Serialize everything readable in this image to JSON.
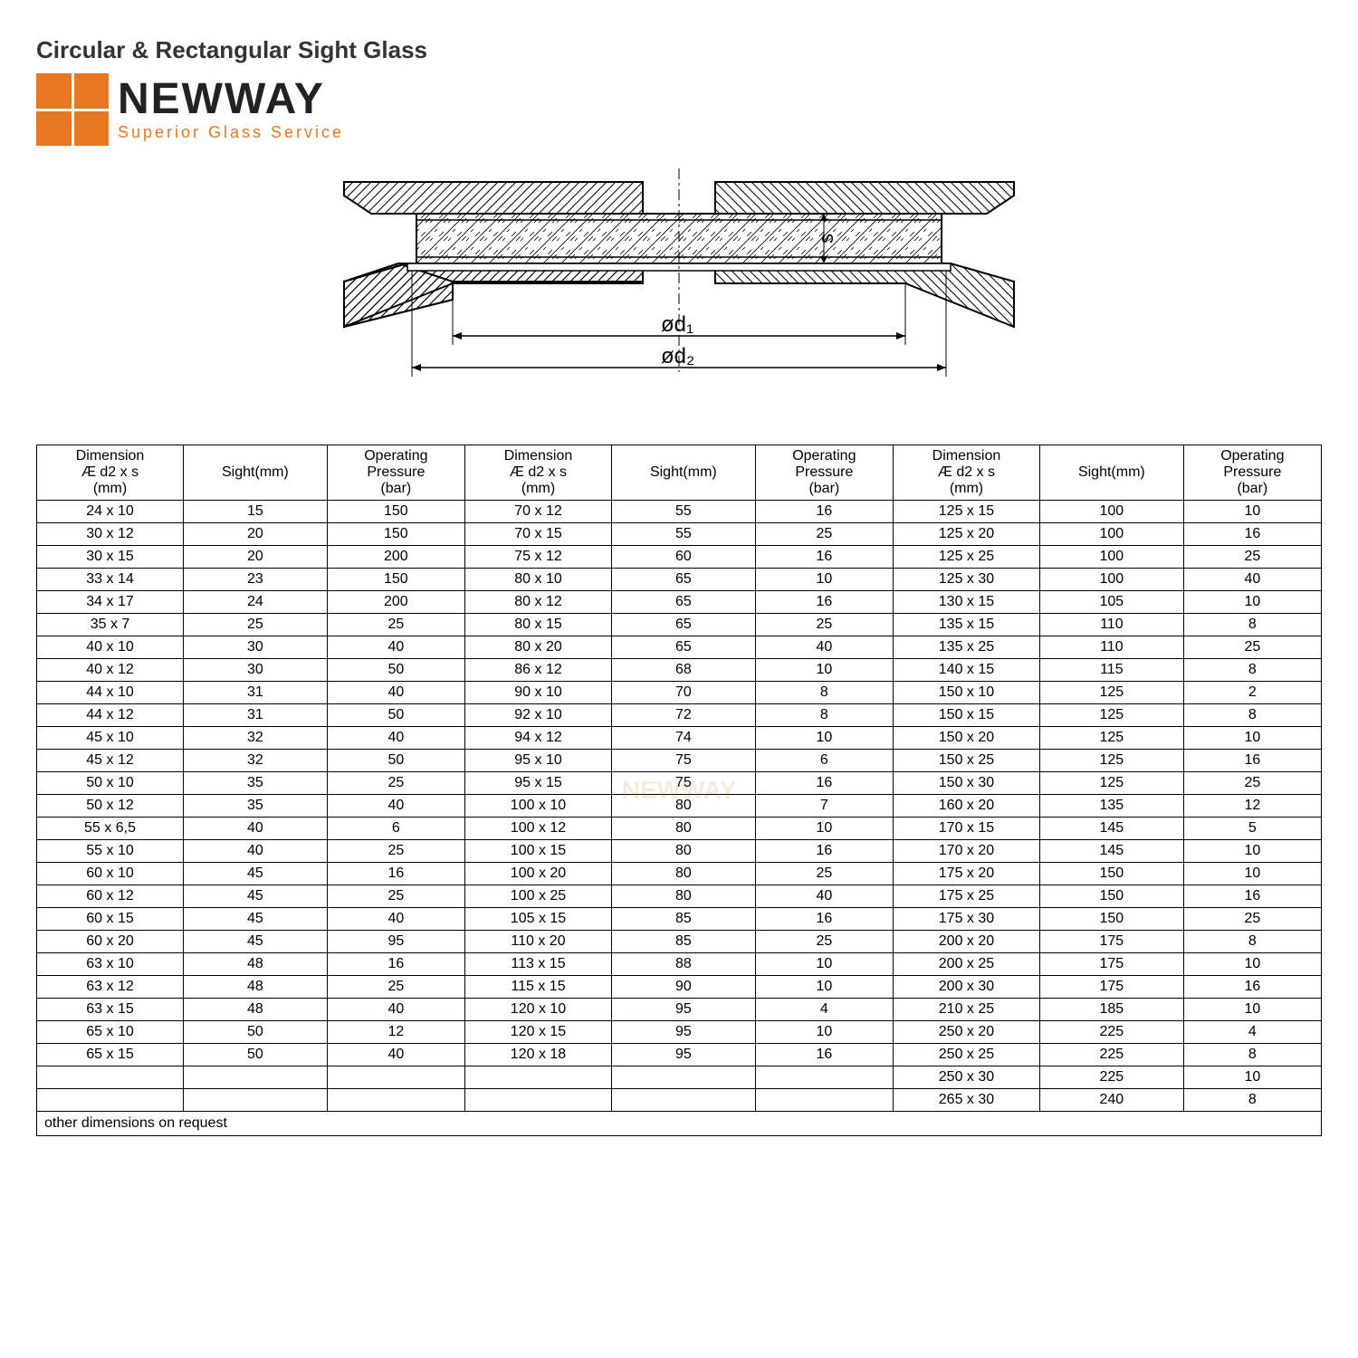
{
  "title": "Circular & Rectangular Sight Glass",
  "logo": {
    "main": "NEWWAY",
    "sub": "Superior Glass Service",
    "icon_color": "#e87722"
  },
  "diagram": {
    "labels": {
      "s": "s",
      "d1": "ød₁",
      "d2": "ød₂"
    },
    "line_color": "#000000",
    "hatch_color": "#000000"
  },
  "watermark": "NEWWAY",
  "table": {
    "columns": [
      "Dimension\nÆ d2 x s\n(mm)",
      "Sight(mm)",
      "Operating\nPressure\n(bar)",
      "Dimension\nÆ d2 x s\n(mm)",
      "Sight(mm)",
      "Operating\nPressure\n(bar)",
      "Dimension\nÆ d2 x s\n(mm)",
      "Sight(mm)",
      "Operating\nPressure\n(bar)"
    ],
    "rows": [
      [
        "24 x 10",
        "15",
        "150",
        "70 x 12",
        "55",
        "16",
        "125 x 15",
        "100",
        "10"
      ],
      [
        "30 x 12",
        "20",
        "150",
        "70 x 15",
        "55",
        "25",
        "125 x 20",
        "100",
        "16"
      ],
      [
        "30 x 15",
        "20",
        "200",
        "75 x 12",
        "60",
        "16",
        "125 x 25",
        "100",
        "25"
      ],
      [
        "33 x 14",
        "23",
        "150",
        "80 x 10",
        "65",
        "10",
        "125 x 30",
        "100",
        "40"
      ],
      [
        "34 x 17",
        "24",
        "200",
        "80 x 12",
        "65",
        "16",
        "130 x 15",
        "105",
        "10"
      ],
      [
        "35 x 7",
        "25",
        "25",
        "80 x 15",
        "65",
        "25",
        "135 x 15",
        "110",
        "8"
      ],
      [
        "40 x 10",
        "30",
        "40",
        "80 x 20",
        "65",
        "40",
        "135 x 25",
        "110",
        "25"
      ],
      [
        "40 x 12",
        "30",
        "50",
        "86 x 12",
        "68",
        "10",
        "140 x 15",
        "115",
        "8"
      ],
      [
        "44 x 10",
        "31",
        "40",
        "90 x 10",
        "70",
        "8",
        "150 x 10",
        "125",
        "2"
      ],
      [
        "44 x 12",
        "31",
        "50",
        "92 x 10",
        "72",
        "8",
        "150 x 15",
        "125",
        "8"
      ],
      [
        "45 x 10",
        "32",
        "40",
        "94 x 12",
        "74",
        "10",
        "150 x 20",
        "125",
        "10"
      ],
      [
        "45 x 12",
        "32",
        "50",
        "95 x 10",
        "75",
        "6",
        "150 x 25",
        "125",
        "16"
      ],
      [
        "50 x 10",
        "35",
        "25",
        "95 x 15",
        "75",
        "16",
        "150 x 30",
        "125",
        "25"
      ],
      [
        "50 x 12",
        "35",
        "40",
        "100 x 10",
        "80",
        "7",
        "160 x 20",
        "135",
        "12"
      ],
      [
        "55 x 6,5",
        "40",
        "6",
        "100 x 12",
        "80",
        "10",
        "170 x 15",
        "145",
        "5"
      ],
      [
        "55 x 10",
        "40",
        "25",
        "100 x 15",
        "80",
        "16",
        "170 x 20",
        "145",
        "10"
      ],
      [
        "60 x 10",
        "45",
        "16",
        "100 x 20",
        "80",
        "25",
        "175 x 20",
        "150",
        "10"
      ],
      [
        "60 x 12",
        "45",
        "25",
        "100 x 25",
        "80",
        "40",
        "175 x 25",
        "150",
        "16"
      ],
      [
        "60 x 15",
        "45",
        "40",
        "105 x 15",
        "85",
        "16",
        "175 x 30",
        "150",
        "25"
      ],
      [
        "60 x 20",
        "45",
        "95",
        "110 x 20",
        "85",
        "25",
        "200 x 20",
        "175",
        "8"
      ],
      [
        "63 x 10",
        "48",
        "16",
        "113 x 15",
        "88",
        "10",
        "200 x 25",
        "175",
        "10"
      ],
      [
        "63 x 12",
        "48",
        "25",
        "115 x 15",
        "90",
        "10",
        "200 x 30",
        "175",
        "16"
      ],
      [
        "63 x 15",
        "48",
        "40",
        "120 x 10",
        "95",
        "4",
        "210 x 25",
        "185",
        "10"
      ],
      [
        "65 x 10",
        "50",
        "12",
        "120 x 15",
        "95",
        "10",
        "250 x 20",
        "225",
        "4"
      ],
      [
        "65 x 15",
        "50",
        "40",
        "120 x 18",
        "95",
        "16",
        "250 x 25",
        "225",
        "8"
      ],
      [
        "",
        "",
        "",
        "",
        "",
        "",
        "250 x 30",
        "225",
        "10"
      ],
      [
        "",
        "",
        "",
        "",
        "",
        "",
        "265 x 30",
        "240",
        "8"
      ]
    ],
    "footer": "other dimensions on request"
  }
}
